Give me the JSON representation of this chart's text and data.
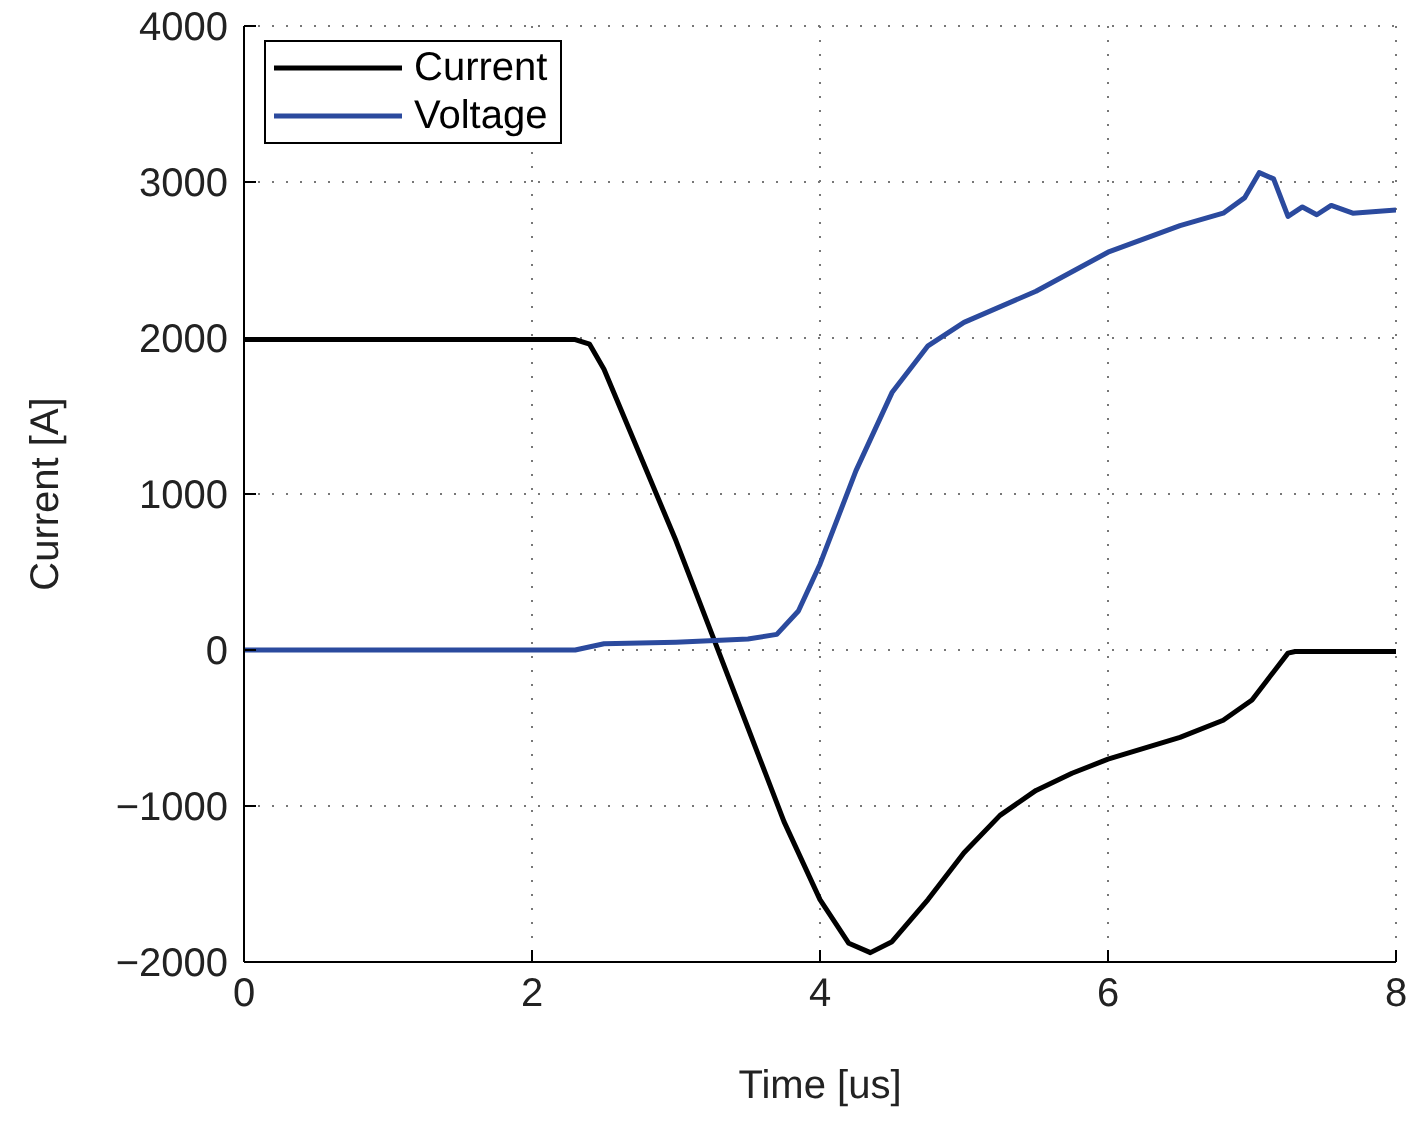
{
  "chart_data": {
    "type": "line",
    "xlabel": "Time [us]",
    "ylabel": "Current [A]",
    "xlim": [
      0,
      8
    ],
    "xticks": [
      0,
      2,
      4,
      6,
      8
    ],
    "ylim": [
      -2000,
      4000
    ],
    "yticks": [
      -2000,
      -1000,
      0,
      1000,
      2000,
      3000,
      4000
    ],
    "grid": true,
    "legend": "top left",
    "line_style": "solid",
    "marker": "none",
    "series": [
      {
        "name": "Current",
        "color": "#000000",
        "x": [
          0,
          1,
          2,
          2.3,
          2.4,
          2.5,
          2.75,
          3.0,
          3.25,
          3.5,
          3.75,
          4.0,
          4.2,
          4.35,
          4.5,
          4.75,
          5.0,
          5.25,
          5.5,
          5.75,
          6.0,
          6.5,
          6.8,
          7.0,
          7.1,
          7.25,
          7.3,
          7.6,
          8
        ],
        "values": [
          1990,
          1990,
          1990,
          1990,
          1960,
          1800,
          1250,
          700,
          100,
          -500,
          -1100,
          -1600,
          -1880,
          -1940,
          -1870,
          -1600,
          -1300,
          -1060,
          -900,
          -790,
          -700,
          -560,
          -450,
          -320,
          -200,
          -20,
          -10,
          -10,
          -10
        ]
      },
      {
        "name": "Voltage",
        "color": "#2b4a9e",
        "x": [
          0,
          1,
          2,
          2.3,
          2.5,
          3.0,
          3.5,
          3.7,
          3.85,
          4.0,
          4.25,
          4.5,
          4.75,
          5.0,
          5.5,
          6.0,
          6.5,
          6.8,
          6.95,
          7.05,
          7.15,
          7.25,
          7.35,
          7.45,
          7.55,
          7.7,
          8
        ],
        "values": [
          0,
          0,
          0,
          0,
          40,
          50,
          70,
          100,
          250,
          550,
          1150,
          1650,
          1950,
          2100,
          2300,
          2550,
          2720,
          2800,
          2900,
          3060,
          3020,
          2780,
          2840,
          2790,
          2850,
          2800,
          2820
        ]
      }
    ]
  }
}
